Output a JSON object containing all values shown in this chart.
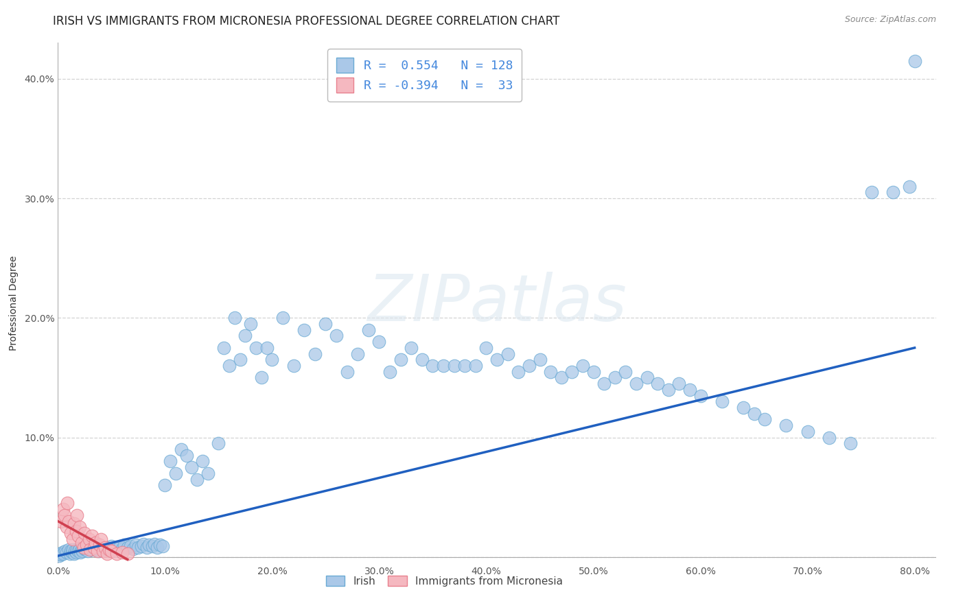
{
  "title": "IRISH VS IMMIGRANTS FROM MICRONESIA PROFESSIONAL DEGREE CORRELATION CHART",
  "source": "Source: ZipAtlas.com",
  "ylabel": "Professional Degree",
  "watermark": "ZIPatlas",
  "xlim": [
    0.0,
    0.82
  ],
  "ylim": [
    -0.005,
    0.43
  ],
  "xticks": [
    0.0,
    0.1,
    0.2,
    0.3,
    0.4,
    0.5,
    0.6,
    0.7,
    0.8
  ],
  "xticklabels": [
    "0.0%",
    "10.0%",
    "20.0%",
    "30.0%",
    "40.0%",
    "50.0%",
    "60.0%",
    "70.0%",
    "80.0%"
  ],
  "yticks": [
    0.0,
    0.1,
    0.2,
    0.3,
    0.4
  ],
  "yticklabels": [
    "",
    "10.0%",
    "20.0%",
    "30.0%",
    "40.0%"
  ],
  "irish_color": "#aac8e8",
  "micronesia_color": "#f5b8c0",
  "irish_edge": "#6aaad4",
  "micronesia_edge": "#e8808e",
  "trend_irish_color": "#2060c0",
  "trend_micronesia_color": "#d04050",
  "legend_color": "#4488dd",
  "irish_R": 0.554,
  "irish_N": 128,
  "micronesia_R": -0.394,
  "micronesia_N": 33,
  "background_color": "#ffffff",
  "grid_color": "#c8c8c8",
  "title_fontsize": 12,
  "axis_label_fontsize": 10,
  "tick_fontsize": 10,
  "irish_x": [
    0.001,
    0.002,
    0.003,
    0.004,
    0.005,
    0.007,
    0.008,
    0.01,
    0.011,
    0.012,
    0.013,
    0.014,
    0.015,
    0.016,
    0.017,
    0.018,
    0.019,
    0.02,
    0.021,
    0.022,
    0.023,
    0.025,
    0.026,
    0.027,
    0.028,
    0.03,
    0.032,
    0.033,
    0.035,
    0.037,
    0.038,
    0.04,
    0.042,
    0.044,
    0.046,
    0.048,
    0.05,
    0.053,
    0.055,
    0.058,
    0.06,
    0.062,
    0.065,
    0.068,
    0.07,
    0.073,
    0.075,
    0.078,
    0.08,
    0.083,
    0.085,
    0.088,
    0.09,
    0.093,
    0.095,
    0.098,
    0.1,
    0.105,
    0.11,
    0.115,
    0.12,
    0.125,
    0.13,
    0.135,
    0.14,
    0.15,
    0.155,
    0.16,
    0.165,
    0.17,
    0.175,
    0.18,
    0.185,
    0.19,
    0.195,
    0.2,
    0.21,
    0.22,
    0.23,
    0.24,
    0.25,
    0.26,
    0.27,
    0.28,
    0.29,
    0.3,
    0.31,
    0.32,
    0.33,
    0.34,
    0.35,
    0.36,
    0.37,
    0.38,
    0.39,
    0.4,
    0.41,
    0.42,
    0.43,
    0.44,
    0.45,
    0.46,
    0.47,
    0.48,
    0.49,
    0.5,
    0.51,
    0.52,
    0.53,
    0.54,
    0.55,
    0.56,
    0.57,
    0.58,
    0.59,
    0.6,
    0.62,
    0.64,
    0.65,
    0.66,
    0.68,
    0.7,
    0.72,
    0.74,
    0.76,
    0.78,
    0.795,
    0.8
  ],
  "irish_y": [
    0.001,
    0.003,
    0.002,
    0.004,
    0.003,
    0.005,
    0.004,
    0.006,
    0.003,
    0.005,
    0.004,
    0.006,
    0.003,
    0.005,
    0.004,
    0.006,
    0.005,
    0.007,
    0.004,
    0.006,
    0.005,
    0.007,
    0.006,
    0.008,
    0.005,
    0.007,
    0.006,
    0.008,
    0.006,
    0.007,
    0.005,
    0.008,
    0.006,
    0.007,
    0.008,
    0.006,
    0.009,
    0.007,
    0.008,
    0.009,
    0.007,
    0.01,
    0.008,
    0.009,
    0.007,
    0.01,
    0.008,
    0.009,
    0.011,
    0.008,
    0.01,
    0.009,
    0.011,
    0.008,
    0.01,
    0.009,
    0.06,
    0.08,
    0.07,
    0.09,
    0.085,
    0.075,
    0.065,
    0.08,
    0.07,
    0.095,
    0.175,
    0.16,
    0.2,
    0.165,
    0.185,
    0.195,
    0.175,
    0.15,
    0.175,
    0.165,
    0.2,
    0.16,
    0.19,
    0.17,
    0.195,
    0.185,
    0.155,
    0.17,
    0.19,
    0.18,
    0.155,
    0.165,
    0.175,
    0.165,
    0.16,
    0.16,
    0.16,
    0.16,
    0.16,
    0.175,
    0.165,
    0.17,
    0.155,
    0.16,
    0.165,
    0.155,
    0.15,
    0.155,
    0.16,
    0.155,
    0.145,
    0.15,
    0.155,
    0.145,
    0.15,
    0.145,
    0.14,
    0.145,
    0.14,
    0.135,
    0.13,
    0.125,
    0.12,
    0.115,
    0.11,
    0.105,
    0.1,
    0.095,
    0.305,
    0.305,
    0.31,
    0.415
  ],
  "micronesia_x": [
    0.003,
    0.005,
    0.006,
    0.008,
    0.009,
    0.01,
    0.012,
    0.014,
    0.015,
    0.017,
    0.018,
    0.019,
    0.02,
    0.022,
    0.024,
    0.025,
    0.027,
    0.029,
    0.03,
    0.032,
    0.034,
    0.035,
    0.037,
    0.039,
    0.04,
    0.042,
    0.044,
    0.046,
    0.048,
    0.05,
    0.055,
    0.06,
    0.065
  ],
  "micronesia_y": [
    0.03,
    0.04,
    0.035,
    0.025,
    0.045,
    0.03,
    0.02,
    0.015,
    0.028,
    0.022,
    0.035,
    0.018,
    0.025,
    0.012,
    0.008,
    0.02,
    0.01,
    0.015,
    0.006,
    0.018,
    0.008,
    0.012,
    0.005,
    0.01,
    0.015,
    0.005,
    0.008,
    0.003,
    0.006,
    0.005,
    0.003,
    0.004,
    0.003
  ],
  "trend_irish_x0": 0.0,
  "trend_irish_x1": 0.8,
  "trend_irish_y0": 0.001,
  "trend_irish_y1": 0.175,
  "trend_micro_x0": 0.0,
  "trend_micro_x1": 0.065,
  "trend_micro_y0": 0.03,
  "trend_micro_y1": -0.002
}
